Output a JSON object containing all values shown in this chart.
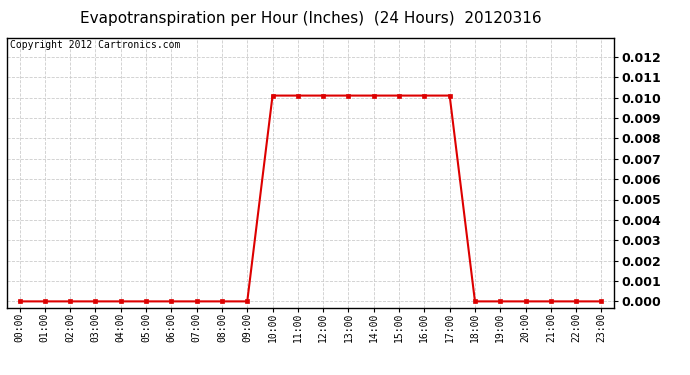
{
  "title": "Evapotranspiration per Hour (Inches)  (24 Hours)  20120316",
  "copyright": "Copyright 2012 Cartronics.com",
  "hours": [
    0,
    1,
    2,
    3,
    4,
    5,
    6,
    7,
    8,
    9,
    10,
    11,
    12,
    13,
    14,
    15,
    16,
    17,
    18,
    19,
    20,
    21,
    22,
    23
  ],
  "values": [
    0.0,
    0.0,
    0.0,
    0.0,
    0.0,
    0.0,
    0.0,
    0.0,
    0.0,
    0.0,
    0.0101,
    0.0101,
    0.0101,
    0.0101,
    0.0101,
    0.0101,
    0.0101,
    0.0101,
    0.0,
    0.0,
    0.0,
    0.0,
    0.0,
    0.0
  ],
  "line_color": "#dd0000",
  "marker": "s",
  "marker_size": 3,
  "bg_color": "#ffffff",
  "plot_bg_color": "#ffffff",
  "grid_color": "#cccccc",
  "ylim": [
    -0.0003,
    0.01295
  ],
  "yticks": [
    0.0,
    0.001,
    0.002,
    0.003,
    0.004,
    0.005,
    0.006,
    0.007,
    0.008,
    0.009,
    0.01,
    0.011,
    0.012
  ],
  "tick_labels": [
    "00:00",
    "01:00",
    "02:00",
    "03:00",
    "04:00",
    "05:00",
    "06:00",
    "07:00",
    "08:00",
    "09:00",
    "10:00",
    "11:00",
    "12:00",
    "13:00",
    "14:00",
    "15:00",
    "16:00",
    "17:00",
    "18:00",
    "19:00",
    "20:00",
    "21:00",
    "22:00",
    "23:00"
  ],
  "title_fontsize": 11,
  "copyright_fontsize": 7,
  "ytick_fontsize": 9,
  "xtick_fontsize": 7
}
